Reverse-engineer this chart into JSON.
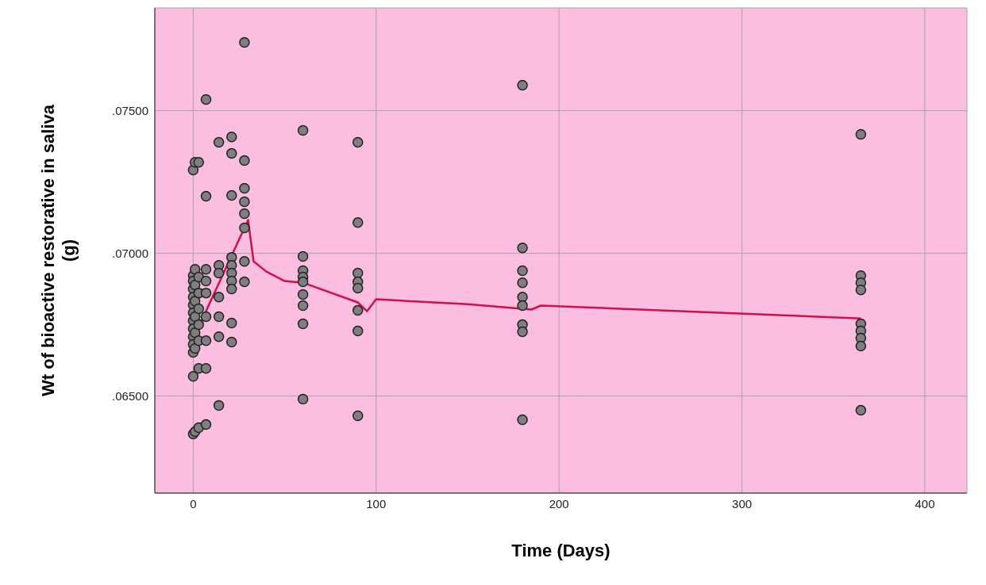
{
  "chart_data": {
    "type": "scatter",
    "xlabel": "Time (Days)",
    "ylabel": "Wt of bioactive restorative in saliva\n(g)",
    "xlim": [
      -21,
      423
    ],
    "ylim": [
      0.0616,
      0.0786
    ],
    "xticks": [
      0,
      100,
      200,
      300,
      400
    ],
    "yticks": [
      {
        "value": 0.065,
        "label": ".06500"
      },
      {
        "value": 0.07,
        "label": ".07000"
      },
      {
        "value": 0.075,
        "label": ".07500"
      }
    ],
    "grid": true,
    "series": [
      {
        "color": "#7f7f7f",
        "marker": "circle",
        "x": [
          0,
          0,
          0,
          0,
          0,
          0,
          0,
          0,
          0,
          0,
          0,
          0,
          0,
          0,
          1,
          1,
          1,
          1,
          1,
          1,
          1,
          1,
          3,
          3,
          3,
          3,
          3,
          3,
          3,
          3,
          7,
          7,
          7,
          7,
          7,
          7,
          7,
          7,
          7,
          14,
          14,
          14,
          14,
          14,
          14,
          14,
          21,
          21,
          21,
          21,
          21,
          21,
          21,
          21,
          21,
          21,
          28,
          28,
          28,
          28,
          28,
          28,
          28,
          28,
          60,
          60,
          60,
          60,
          60,
          60,
          60,
          60,
          60,
          90,
          90,
          90,
          90,
          90,
          90,
          90,
          90,
          180,
          180,
          180,
          180,
          180,
          180,
          180,
          180,
          180,
          365,
          365,
          365,
          365,
          365,
          365,
          365,
          365,
          365
        ],
        "values": [
          0.07292,
          0.06922,
          0.06903,
          0.06875,
          0.06847,
          0.06819,
          0.06792,
          0.06764,
          0.06736,
          0.06708,
          0.06681,
          0.06653,
          0.06569,
          0.06367,
          0.07319,
          0.06944,
          0.06889,
          0.06833,
          0.06778,
          0.06722,
          0.06667,
          0.06375,
          0.07319,
          0.06917,
          0.06861,
          0.06806,
          0.0675,
          0.06694,
          0.06597,
          0.06389,
          0.07539,
          0.072,
          0.06944,
          0.06903,
          0.06861,
          0.06778,
          0.06694,
          0.06597,
          0.064,
          0.07389,
          0.06958,
          0.06931,
          0.06847,
          0.06778,
          0.06708,
          0.06467,
          0.07408,
          0.0735,
          0.07203,
          0.06986,
          0.06958,
          0.06931,
          0.06903,
          0.06875,
          0.06756,
          0.06689,
          0.07739,
          0.07325,
          0.07228,
          0.07181,
          0.07139,
          0.07089,
          0.06972,
          0.069,
          0.07431,
          0.06989,
          0.06939,
          0.06917,
          0.069,
          0.06856,
          0.06817,
          0.06753,
          0.06489,
          0.07389,
          0.07108,
          0.06931,
          0.069,
          0.06878,
          0.068,
          0.06728,
          0.06431,
          0.07589,
          0.07019,
          0.06939,
          0.06897,
          0.06847,
          0.06817,
          0.0675,
          0.06725,
          0.06417,
          0.07417,
          0.06922,
          0.06897,
          0.06872,
          0.06753,
          0.06728,
          0.06703,
          0.06675,
          0.0645
        ]
      },
      {
        "type": "line",
        "color": "#d0104c",
        "marker": "none",
        "x": [
          0,
          30,
          33,
          40,
          50,
          60,
          90,
          95,
          100,
          150,
          185,
          190,
          365
        ],
        "values": [
          0.067,
          0.07117,
          0.06972,
          0.06936,
          0.06903,
          0.06897,
          0.06828,
          0.06797,
          0.06839,
          0.06822,
          0.06803,
          0.06817,
          0.06772
        ]
      }
    ]
  }
}
